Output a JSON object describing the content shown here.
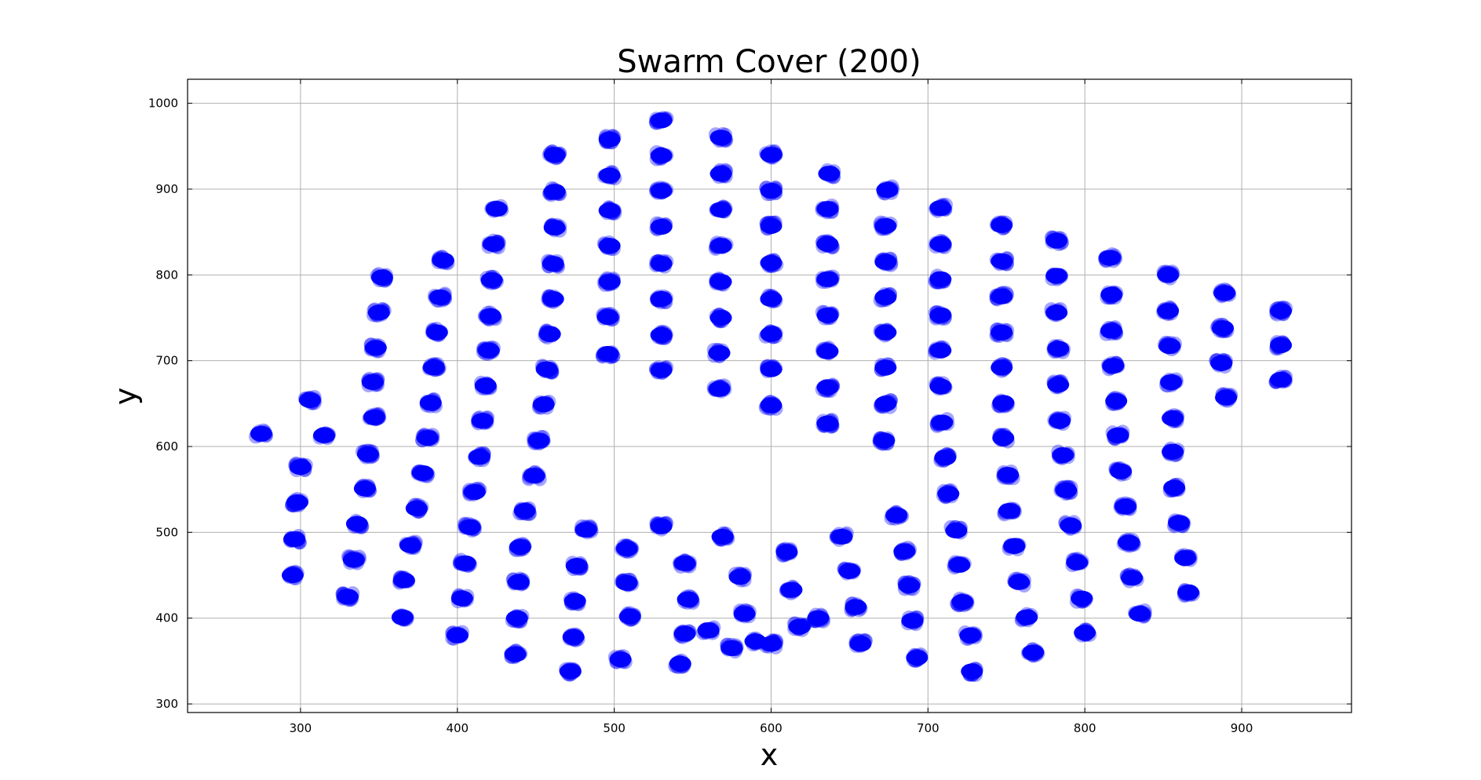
{
  "chart_data": {
    "type": "scatter",
    "title": "Swarm Cover (200)",
    "xlabel": "x",
    "ylabel": "y",
    "xlim": [
      228,
      970
    ],
    "ylim": [
      290,
      1028
    ],
    "xticks": [
      300,
      400,
      500,
      600,
      700,
      800,
      900
    ],
    "yticks": [
      300,
      400,
      500,
      600,
      700,
      800,
      900,
      1000
    ],
    "grid": true,
    "point_color": "#0000ff",
    "points": [
      [
        275,
        615
      ],
      [
        306,
        654
      ],
      [
        315,
        613
      ],
      [
        300,
        576
      ],
      [
        298,
        535
      ],
      [
        296,
        492
      ],
      [
        295,
        450
      ],
      [
        330,
        425
      ],
      [
        334,
        468
      ],
      [
        336,
        510
      ],
      [
        341,
        551
      ],
      [
        343,
        591
      ],
      [
        347,
        634
      ],
      [
        346,
        675
      ],
      [
        348,
        715
      ],
      [
        350,
        756
      ],
      [
        352,
        797
      ],
      [
        365,
        401
      ],
      [
        366,
        444
      ],
      [
        370,
        485
      ],
      [
        374,
        528
      ],
      [
        378,
        569
      ],
      [
        381,
        610
      ],
      [
        383,
        651
      ],
      [
        385,
        692
      ],
      [
        387,
        733
      ],
      [
        389,
        774
      ],
      [
        391,
        817
      ],
      [
        400,
        380
      ],
      [
        403,
        423
      ],
      [
        405,
        464
      ],
      [
        408,
        506
      ],
      [
        411,
        547
      ],
      [
        414,
        588
      ],
      [
        416,
        630
      ],
      [
        418,
        671
      ],
      [
        420,
        712
      ],
      [
        421,
        752
      ],
      [
        422,
        794
      ],
      [
        423,
        836
      ],
      [
        425,
        877
      ],
      [
        437,
        358
      ],
      [
        438,
        400
      ],
      [
        439,
        442
      ],
      [
        440,
        483
      ],
      [
        443,
        525
      ],
      [
        449,
        566
      ],
      [
        452,
        607
      ],
      [
        455,
        649
      ],
      [
        457,
        690
      ],
      [
        459,
        731
      ],
      [
        461,
        772
      ],
      [
        461,
        813
      ],
      [
        462,
        855
      ],
      [
        462,
        897
      ],
      [
        462,
        940
      ],
      [
        472,
        338
      ],
      [
        474,
        378
      ],
      [
        475,
        420
      ],
      [
        476,
        461
      ],
      [
        482,
        503
      ],
      [
        496,
        708
      ],
      [
        496,
        751
      ],
      [
        497,
        792
      ],
      [
        497,
        834
      ],
      [
        497,
        875
      ],
      [
        497,
        916
      ],
      [
        497,
        958
      ],
      [
        504,
        352
      ],
      [
        510,
        402
      ],
      [
        508,
        441
      ],
      [
        508,
        481
      ],
      [
        530,
        507
      ],
      [
        530,
        689
      ],
      [
        530,
        730
      ],
      [
        530,
        772
      ],
      [
        530,
        813
      ],
      [
        530,
        856
      ],
      [
        530,
        898
      ],
      [
        530,
        939
      ],
      [
        530,
        980
      ],
      [
        545,
        382
      ],
      [
        547,
        422
      ],
      [
        545,
        464
      ],
      [
        542,
        347
      ],
      [
        560,
        386
      ],
      [
        569,
        495
      ],
      [
        567,
        667
      ],
      [
        567,
        709
      ],
      [
        568,
        750
      ],
      [
        568,
        792
      ],
      [
        568,
        834
      ],
      [
        568,
        876
      ],
      [
        568,
        918
      ],
      [
        568,
        960
      ],
      [
        575,
        365
      ],
      [
        580,
        448
      ],
      [
        583,
        405
      ],
      [
        590,
        373
      ],
      [
        600,
        370
      ],
      [
        610,
        477
      ],
      [
        613,
        433
      ],
      [
        618,
        390
      ],
      [
        630,
        400
      ],
      [
        600,
        648
      ],
      [
        600,
        690
      ],
      [
        600,
        731
      ],
      [
        600,
        772
      ],
      [
        600,
        814
      ],
      [
        600,
        857
      ],
      [
        600,
        898
      ],
      [
        600,
        940
      ],
      [
        645,
        495
      ],
      [
        650,
        455
      ],
      [
        654,
        413
      ],
      [
        657,
        370
      ],
      [
        636,
        627
      ],
      [
        636,
        669
      ],
      [
        636,
        711
      ],
      [
        636,
        753
      ],
      [
        636,
        795
      ],
      [
        636,
        836
      ],
      [
        636,
        877
      ],
      [
        637,
        918
      ],
      [
        680,
        520
      ],
      [
        685,
        478
      ],
      [
        688,
        438
      ],
      [
        690,
        397
      ],
      [
        693,
        354
      ],
      [
        672,
        607
      ],
      [
        673,
        650
      ],
      [
        673,
        692
      ],
      [
        673,
        733
      ],
      [
        673,
        774
      ],
      [
        673,
        815
      ],
      [
        673,
        857
      ],
      [
        674,
        899
      ],
      [
        718,
        502
      ],
      [
        720,
        462
      ],
      [
        722,
        419
      ],
      [
        727,
        380
      ],
      [
        728,
        338
      ],
      [
        713,
        545
      ],
      [
        711,
        587
      ],
      [
        709,
        628
      ],
      [
        708,
        670
      ],
      [
        708,
        712
      ],
      [
        708,
        753
      ],
      [
        708,
        795
      ],
      [
        708,
        836
      ],
      [
        708,
        878
      ],
      [
        751,
        567
      ],
      [
        752,
        525
      ],
      [
        755,
        484
      ],
      [
        758,
        442
      ],
      [
        763,
        401
      ],
      [
        767,
        360
      ],
      [
        748,
        610
      ],
      [
        748,
        651
      ],
      [
        747,
        692
      ],
      [
        747,
        733
      ],
      [
        747,
        775
      ],
      [
        747,
        816
      ],
      [
        747,
        858
      ],
      [
        786,
        590
      ],
      [
        788,
        549
      ],
      [
        791,
        508
      ],
      [
        795,
        465
      ],
      [
        798,
        423
      ],
      [
        800,
        383
      ],
      [
        784,
        630
      ],
      [
        783,
        672
      ],
      [
        783,
        714
      ],
      [
        782,
        756
      ],
      [
        782,
        799
      ],
      [
        782,
        840
      ],
      [
        821,
        613
      ],
      [
        823,
        571
      ],
      [
        826,
        530
      ],
      [
        828,
        488
      ],
      [
        830,
        447
      ],
      [
        835,
        405
      ],
      [
        820,
        653
      ],
      [
        818,
        694
      ],
      [
        817,
        735
      ],
      [
        817,
        777
      ],
      [
        816,
        820
      ],
      [
        856,
        633
      ],
      [
        856,
        594
      ],
      [
        857,
        552
      ],
      [
        860,
        511
      ],
      [
        864,
        470
      ],
      [
        866,
        430
      ],
      [
        855,
        675
      ],
      [
        854,
        717
      ],
      [
        853,
        758
      ],
      [
        853,
        800
      ],
      [
        890,
        657
      ],
      [
        887,
        697
      ],
      [
        888,
        738
      ],
      [
        889,
        779
      ],
      [
        925,
        678
      ],
      [
        925,
        718
      ],
      [
        925,
        758
      ]
    ]
  }
}
